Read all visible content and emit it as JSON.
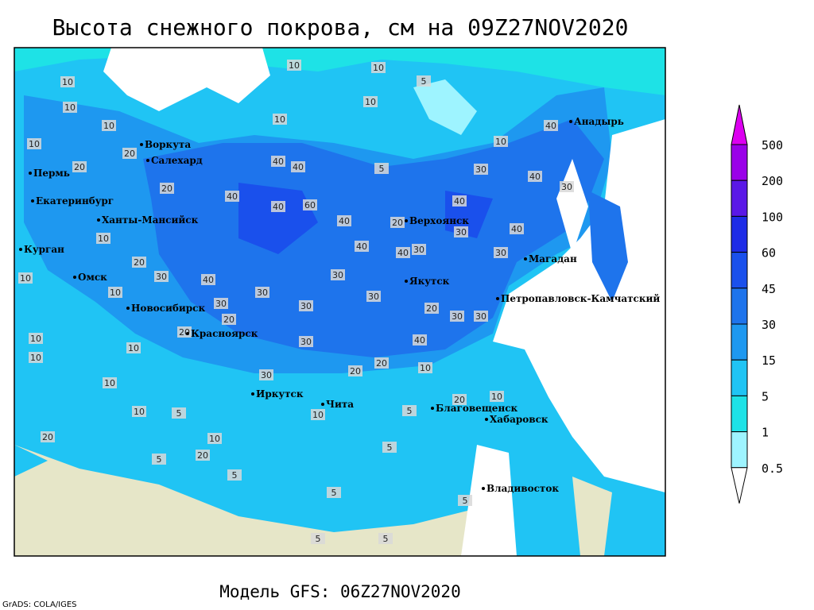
{
  "title": "Высота снежного покрова, см на 09Z27NOV2020",
  "footer": "Модель GFS: 06Z27NOV2020",
  "credit": "GrADS: COLA/IGES",
  "cities": [
    "Воркута",
    "Салехард",
    "Пермь",
    "Екатеринбург",
    "Ханты-Мансийск",
    "Курган",
    "Омск",
    "Новосибирск",
    "Красноярск",
    "Иркутск",
    "Чита",
    "Верхоянск",
    "Якутск",
    "Магадан",
    "Анадырь",
    "Петропавловск-Камчатский",
    "Благовещенск",
    "Хабаровск",
    "Владивосток"
  ],
  "contour_labels": [
    10,
    10,
    10,
    10,
    20,
    20,
    20,
    10,
    20,
    10,
    30,
    10,
    40,
    30,
    20,
    10,
    10,
    10,
    20,
    30,
    30,
    30,
    30,
    40,
    40,
    40,
    40,
    60,
    40,
    40,
    30,
    30,
    20,
    40,
    30,
    20,
    30,
    40,
    30,
    40,
    30,
    30,
    40,
    30,
    40,
    30,
    40,
    10,
    10,
    5,
    10,
    10,
    5,
    10,
    20,
    20,
    10,
    10,
    5,
    20,
    10,
    5,
    5,
    5,
    5,
    5,
    10,
    20,
    5,
    10,
    20,
    5,
    10,
    5
  ],
  "colorbar": {
    "levels": [
      0.5,
      1,
      5,
      15,
      30,
      45,
      60,
      100,
      200,
      500
    ],
    "colors": [
      "#ffffff",
      "#9ef4ff",
      "#1ee2e6",
      "#20c4f4",
      "#1e98f0",
      "#1e74ec",
      "#1a50ec",
      "#1e2ce6",
      "#5a18e6",
      "#9a00e8",
      "#dc00f0"
    ]
  }
}
